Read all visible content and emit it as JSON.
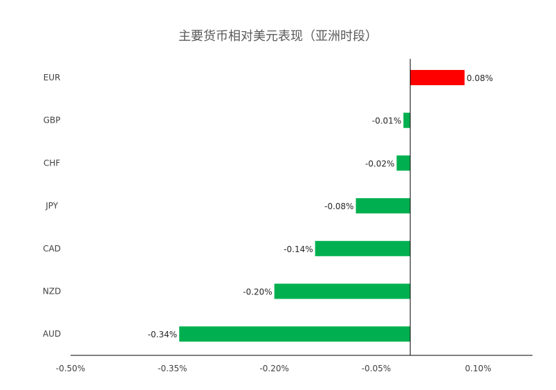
{
  "chart_data": {
    "type": "bar",
    "orientation": "horizontal",
    "title": "主要货币相对美元表现（亚洲时段）",
    "categories": [
      "EUR",
      "GBP",
      "CHF",
      "JPY",
      "CAD",
      "NZD",
      "AUD"
    ],
    "values": [
      0.0008,
      -0.0001,
      -0.0002,
      -0.0008,
      -0.0014,
      -0.002,
      -0.0034
    ],
    "data_labels": [
      "0.08%",
      "-0.01%",
      "-0.02%",
      "-0.08%",
      "-0.14%",
      "-0.20%",
      "-0.34%"
    ],
    "colors": {
      "positive": "#FF0000",
      "negative": "#00B050"
    },
    "xlim": [
      -0.005,
      0.0018
    ],
    "x_ticks": [
      -0.005,
      -0.0035,
      -0.002,
      -0.0005,
      0.001
    ],
    "x_tick_labels": [
      "-0.50%",
      "-0.35%",
      "-0.20%",
      "-0.05%",
      "0.10%"
    ],
    "grid": false,
    "legend": "none"
  }
}
